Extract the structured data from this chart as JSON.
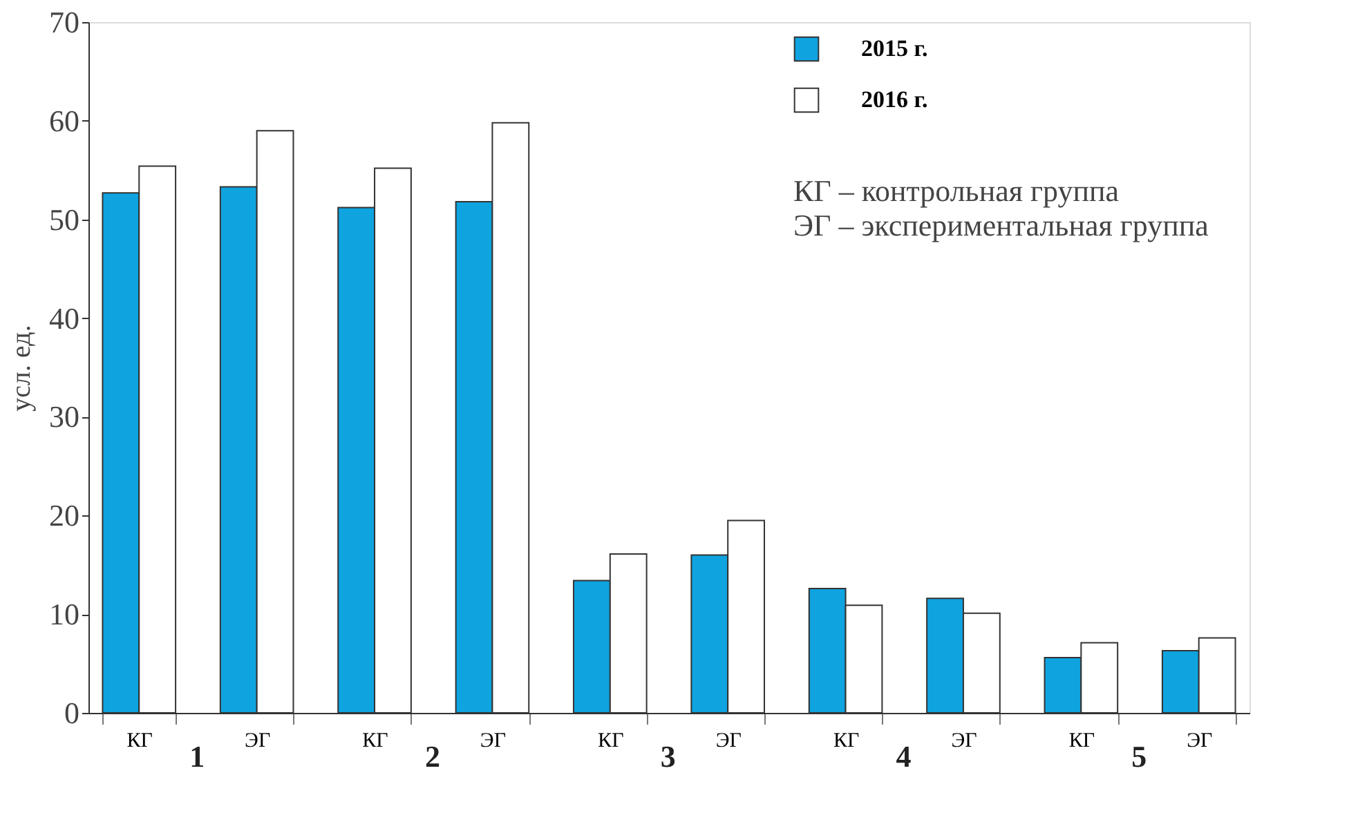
{
  "chart_data": {
    "type": "bar",
    "ylabel": "усл. ед.",
    "categories": [
      "КГ",
      "ЭГ",
      "КГ",
      "ЭГ",
      "КГ",
      "ЭГ",
      "КГ",
      "ЭГ",
      "КГ",
      "ЭГ"
    ],
    "series": [
      {
        "name": "2015 г.",
        "color": "#0fa3e0",
        "values": [
          52.7,
          53.3,
          51.2,
          51.8,
          13.4,
          16.0,
          12.6,
          11.6,
          5.6,
          6.3
        ]
      },
      {
        "name": "2016 г.",
        "color": "#ffffff",
        "values": [
          55.4,
          59.0,
          55.2,
          59.8,
          16.1,
          19.5,
          10.9,
          10.1,
          7.1,
          7.6
        ]
      }
    ],
    "annotations": [
      "1",
      "2",
      "3",
      "4",
      "5",
      "КГ – контрольная группа",
      "ЭГ – экспериментальная группа"
    ],
    "ylim": [
      0,
      70
    ],
    "yticks": [
      0,
      10,
      20,
      30,
      40,
      50,
      60,
      70
    ],
    "grid": false,
    "legend": "top right"
  }
}
